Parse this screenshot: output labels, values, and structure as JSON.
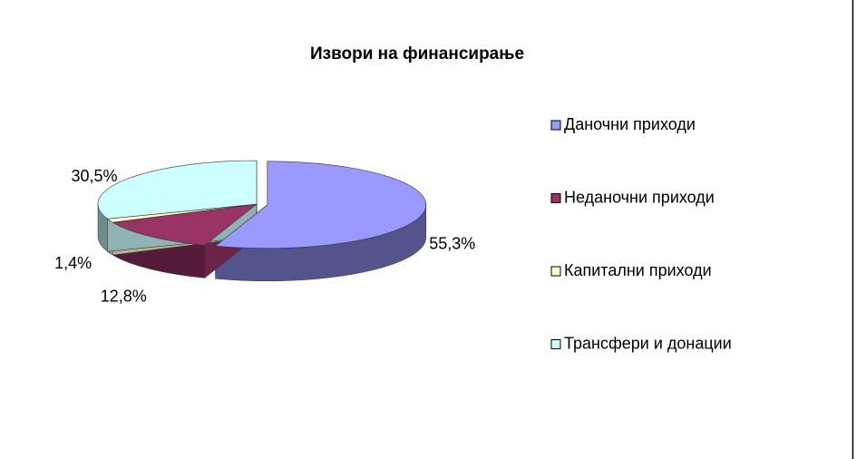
{
  "chart_data": {
    "type": "pie",
    "title": "Извори на финансирање",
    "categories": [
      "Даночни приходи",
      "Неданочни приходи",
      "Капитални приходи",
      "Трансфери и донации"
    ],
    "values": [
      55.3,
      12.8,
      1.4,
      30.5
    ],
    "value_labels": [
      "55,3%",
      "12,8%",
      "1,4%",
      "30,5%"
    ],
    "colors": [
      "#9999ff",
      "#993366",
      "#ffffcc",
      "#ccffff"
    ],
    "legend": "right"
  }
}
